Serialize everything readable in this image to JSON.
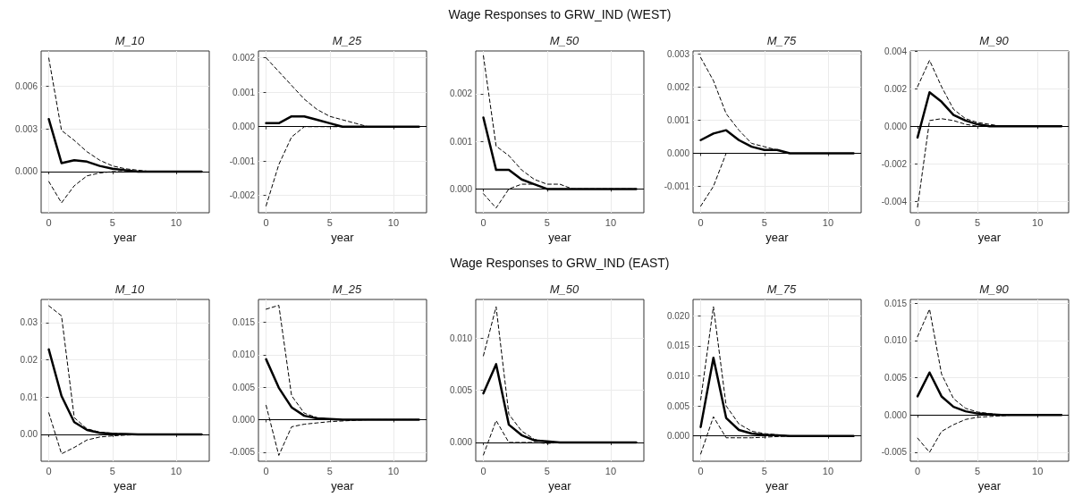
{
  "chart_data": [
    {
      "type": "line",
      "title": "M_10",
      "xlabel": "year",
      "x": [
        0,
        1,
        2,
        3,
        4,
        5,
        6,
        7,
        8,
        9,
        10,
        11,
        12
      ],
      "xlim": [
        -0.6,
        12.6
      ],
      "xticks": [
        0,
        5,
        10
      ],
      "ylim": [
        -0.0029,
        0.0085
      ],
      "yticks": [
        {
          "value": 0,
          "label": "0.000"
        },
        0.003,
        0.006
      ],
      "grid": true,
      "marker": "none",
      "ref_lines": [
        {
          "axis": "y",
          "value": 0,
          "color": "#000000"
        }
      ],
      "series": [
        {
          "color": "#000000",
          "line_style": "solid",
          "values": [
            0.0037,
            0.0006,
            0.0008,
            0.0007,
            0.0004,
            0.0002,
            0.0001,
            0,
            0,
            0,
            0,
            0,
            0
          ]
        },
        {
          "color": "#000000",
          "line_style": "dashed",
          "values": [
            0.008,
            0.0029,
            0.0022,
            0.0014,
            0.0008,
            0.0004,
            0.0002,
            0.0001,
            0,
            0,
            0,
            0,
            0
          ]
        },
        {
          "color": "#000000",
          "line_style": "dashed",
          "values": [
            -0.0007,
            -0.0022,
            -0.001,
            -0.0003,
            -0.0001,
            0,
            0,
            0,
            0,
            0,
            0,
            0,
            0
          ]
        }
      ]
    },
    {
      "type": "line",
      "title": "M_25",
      "xlabel": "year",
      "x": [
        0,
        1,
        2,
        3,
        4,
        5,
        6,
        7,
        8,
        9,
        10,
        11,
        12
      ],
      "xlim": [
        -0.6,
        12.6
      ],
      "xticks": [
        0,
        5,
        10
      ],
      "ylim": [
        -0.0025,
        0.0022
      ],
      "yticks": [
        -0.002,
        -0.001,
        {
          "value": 0,
          "label": "0.000"
        },
        0.001,
        0.002
      ],
      "grid": true,
      "marker": "none",
      "ref_lines": [
        {
          "axis": "y",
          "value": 0,
          "color": "#000000"
        }
      ],
      "series": [
        {
          "color": "#000000",
          "line_style": "solid",
          "values": [
            0.0001,
            0.0001,
            0.0003,
            0.0003,
            0.0002,
            0.0001,
            0,
            0,
            0,
            0,
            0,
            0,
            0
          ]
        },
        {
          "color": "#000000",
          "line_style": "dashed",
          "values": [
            0.002,
            0.0016,
            0.0012,
            0.0008,
            0.0005,
            0.0003,
            0.0002,
            0.0001,
            0,
            0,
            0,
            0,
            0
          ]
        },
        {
          "color": "#000000",
          "line_style": "dashed",
          "values": [
            -0.0023,
            -0.0011,
            -0.0003,
            0,
            0,
            0,
            0,
            0,
            0,
            0,
            0,
            0,
            0
          ]
        }
      ]
    },
    {
      "type": "line",
      "title": "M_50",
      "subtitle": "Wage Responses to GRW_IND (WEST)",
      "xlabel": "year",
      "x": [
        0,
        1,
        2,
        3,
        4,
        5,
        6,
        7,
        8,
        9,
        10,
        11,
        12
      ],
      "xlim": [
        -0.6,
        12.6
      ],
      "xticks": [
        0,
        5,
        10
      ],
      "ylim": [
        -0.0005,
        0.0029
      ],
      "yticks": [
        {
          "value": 0,
          "label": "0.000"
        },
        0.001,
        0.002
      ],
      "grid": true,
      "marker": "none",
      "ref_lines": [
        {
          "axis": "y",
          "value": 0,
          "color": "#000000"
        }
      ],
      "series": [
        {
          "color": "#000000",
          "line_style": "solid",
          "values": [
            0.0015,
            0.0004,
            0.0004,
            0.0002,
            0.0001,
            0,
            0,
            0,
            0,
            0,
            0,
            0,
            0
          ]
        },
        {
          "color": "#000000",
          "line_style": "dashed",
          "values": [
            0.0028,
            0.0009,
            0.0007,
            0.0004,
            0.0002,
            0.0001,
            0.0001,
            0,
            0,
            0,
            0,
            0,
            0
          ]
        },
        {
          "color": "#000000",
          "line_style": "dashed",
          "values": [
            -0.0001,
            -0.0004,
            0,
            0.0001,
            0.0001,
            0,
            0,
            0,
            0,
            0,
            0,
            0,
            0
          ]
        }
      ]
    },
    {
      "type": "line",
      "title": "M_75",
      "xlabel": "year",
      "x": [
        0,
        1,
        2,
        3,
        4,
        5,
        6,
        7,
        8,
        9,
        10,
        11,
        12
      ],
      "xlim": [
        -0.6,
        12.6
      ],
      "xticks": [
        0,
        5,
        10
      ],
      "ylim": [
        -0.0018,
        0.0031
      ],
      "yticks": [
        -0.001,
        {
          "value": 0,
          "label": "0.000"
        },
        0.001,
        0.002,
        0.003
      ],
      "grid": true,
      "marker": "none",
      "ref_lines": [
        {
          "axis": "y",
          "value": 0,
          "color": "#000000"
        }
      ],
      "series": [
        {
          "color": "#000000",
          "line_style": "solid",
          "values": [
            0.0004,
            0.0006,
            0.0007,
            0.0004,
            0.0002,
            0.0001,
            0.0001,
            0,
            0,
            0,
            0,
            0,
            0
          ]
        },
        {
          "color": "#000000",
          "line_style": "dashed",
          "values": [
            0.0029,
            0.0022,
            0.0012,
            0.0007,
            0.0003,
            0.0002,
            0.0001,
            0,
            0,
            0,
            0,
            0,
            0
          ]
        },
        {
          "color": "#000000",
          "line_style": "dashed",
          "values": [
            -0.0016,
            -0.001,
            0,
            0,
            0,
            0,
            0,
            0,
            0,
            0,
            0,
            0,
            0
          ]
        }
      ]
    },
    {
      "type": "line",
      "title": "M_90",
      "xlabel": "year",
      "x": [
        0,
        1,
        2,
        3,
        4,
        5,
        6,
        7,
        8,
        9,
        10,
        11,
        12
      ],
      "xlim": [
        -0.6,
        12.6
      ],
      "xticks": [
        0,
        5,
        10
      ],
      "ylim": [
        -0.0046,
        0.004
      ],
      "yticks": [
        -0.004,
        -0.002,
        {
          "value": 0,
          "label": "0.000"
        },
        0.002,
        0.004
      ],
      "grid": true,
      "marker": "none",
      "ref_lines": [
        {
          "axis": "y",
          "value": 0,
          "color": "#000000"
        }
      ],
      "series": [
        {
          "color": "#000000",
          "line_style": "solid",
          "values": [
            -0.0006,
            0.0018,
            0.0013,
            0.0006,
            0.0003,
            0.0001,
            0,
            0,
            0,
            0,
            0,
            0,
            0
          ]
        },
        {
          "color": "#000000",
          "line_style": "dashed",
          "values": [
            0.0021,
            0.0035,
            0.0021,
            0.0009,
            0.0004,
            0.0002,
            0.0001,
            0,
            0,
            0,
            0,
            0,
            0
          ]
        },
        {
          "color": "#000000",
          "line_style": "dashed",
          "values": [
            -0.0043,
            0.0003,
            0.0004,
            0.0003,
            0.0001,
            0,
            0,
            0,
            0,
            0,
            0,
            0,
            0
          ]
        }
      ]
    },
    {
      "type": "line",
      "title": "M_10",
      "xlabel": "year",
      "x": [
        0,
        1,
        2,
        3,
        4,
        5,
        6,
        7,
        8,
        9,
        10,
        11,
        12
      ],
      "xlim": [
        -0.6,
        12.6
      ],
      "xticks": [
        0,
        5,
        10
      ],
      "ylim": [
        -0.0072,
        0.0362
      ],
      "yticks": [
        {
          "value": 0,
          "label": "0.00"
        },
        0.01,
        0.02,
        0.03
      ],
      "grid": true,
      "marker": "none",
      "ref_lines": [
        {
          "axis": "y",
          "value": 0,
          "color": "#000000"
        }
      ],
      "series": [
        {
          "color": "#000000",
          "line_style": "solid",
          "values": [
            0.0228,
            0.0103,
            0.0033,
            0.0012,
            0.0004,
            0.0002,
            0.0001,
            0,
            0,
            0,
            0,
            0,
            0
          ]
        },
        {
          "color": "#000000",
          "line_style": "dashed",
          "values": [
            0.0345,
            0.0318,
            0.0045,
            0.0015,
            0.0006,
            0.0003,
            0.0001,
            0,
            0,
            0,
            0,
            0,
            0
          ]
        },
        {
          "color": "#000000",
          "line_style": "dashed",
          "values": [
            0.0058,
            -0.0052,
            -0.0035,
            -0.0015,
            -0.0007,
            -0.0004,
            -0.0002,
            -0.0001,
            0,
            0,
            0,
            0,
            0
          ]
        }
      ]
    },
    {
      "type": "line",
      "title": "M_25",
      "xlabel": "year",
      "x": [
        0,
        1,
        2,
        3,
        4,
        5,
        6,
        7,
        8,
        9,
        10,
        11,
        12
      ],
      "xlim": [
        -0.6,
        12.6
      ],
      "xticks": [
        0,
        5,
        10
      ],
      "ylim": [
        -0.0064,
        0.0185
      ],
      "yticks": [
        -0.005,
        {
          "value": 0,
          "label": "0.000"
        },
        0.005,
        {
          "value": 0.01,
          "label": "0.010"
        },
        0.015
      ],
      "grid": true,
      "marker": "none",
      "ref_lines": [
        {
          "axis": "y",
          "value": 0,
          "color": "#000000"
        }
      ],
      "series": [
        {
          "color": "#000000",
          "line_style": "solid",
          "values": [
            0.0093,
            0.0049,
            0.0019,
            0.0006,
            0.0002,
            0.0001,
            0,
            0,
            0,
            0,
            0,
            0,
            0
          ]
        },
        {
          "color": "#000000",
          "line_style": "dashed",
          "values": [
            0.017,
            0.0176,
            0.0037,
            0.001,
            0.0003,
            0.0001,
            0,
            0,
            0,
            0,
            0,
            0,
            0
          ]
        },
        {
          "color": "#000000",
          "line_style": "dashed",
          "values": [
            0.0022,
            -0.0055,
            -0.0011,
            -0.0007,
            -0.0005,
            -0.0003,
            -0.0002,
            -0.0001,
            0,
            0,
            0,
            0,
            0
          ]
        }
      ]
    },
    {
      "type": "line",
      "title": "M_50",
      "subtitle": "Wage Responses to GRW_IND (EAST)",
      "xlabel": "year",
      "x": [
        0,
        1,
        2,
        3,
        4,
        5,
        6,
        7,
        8,
        9,
        10,
        11,
        12
      ],
      "xlim": [
        -0.6,
        12.6
      ],
      "xticks": [
        0,
        5,
        10
      ],
      "ylim": [
        -0.0018,
        0.0137
      ],
      "yticks": [
        {
          "value": 0,
          "label": "0.000"
        },
        0.005,
        {
          "value": 0.01,
          "label": "0.010"
        }
      ],
      "grid": true,
      "marker": "none",
      "ref_lines": [
        {
          "axis": "y",
          "value": 0,
          "color": "#000000"
        }
      ],
      "series": [
        {
          "color": "#000000",
          "line_style": "solid",
          "values": [
            0.0047,
            0.0075,
            0.0017,
            0.0007,
            0.0002,
            0.0001,
            0,
            0,
            0,
            0,
            0,
            0,
            0
          ]
        },
        {
          "color": "#000000",
          "line_style": "dashed",
          "values": [
            0.0083,
            0.013,
            0.0027,
            0.0011,
            0.0003,
            0.0001,
            0,
            0,
            0,
            0,
            0,
            0,
            0
          ]
        },
        {
          "color": "#000000",
          "line_style": "dashed",
          "values": [
            -0.0012,
            0.0021,
            0,
            0,
            0,
            -0.0001,
            0,
            0,
            0,
            0,
            0,
            0,
            0
          ]
        }
      ]
    },
    {
      "type": "line",
      "title": "M_75",
      "xlabel": "year",
      "x": [
        0,
        1,
        2,
        3,
        4,
        5,
        6,
        7,
        8,
        9,
        10,
        11,
        12
      ],
      "xlim": [
        -0.6,
        12.6
      ],
      "xticks": [
        0,
        5,
        10
      ],
      "ylim": [
        -0.0042,
        0.0227
      ],
      "yticks": [
        {
          "value": 0,
          "label": "0.000"
        },
        0.005,
        {
          "value": 0.01,
          "label": "0.010"
        },
        0.015,
        {
          "value": 0.02,
          "label": "0.020"
        }
      ],
      "grid": true,
      "marker": "none",
      "ref_lines": [
        {
          "axis": "y",
          "value": 0,
          "color": "#000000"
        }
      ],
      "series": [
        {
          "color": "#000000",
          "line_style": "solid",
          "values": [
            0.0015,
            0.013,
            0.003,
            0.001,
            0.0004,
            0.0002,
            0.0001,
            0,
            0,
            0,
            0,
            0,
            0
          ]
        },
        {
          "color": "#000000",
          "line_style": "dashed",
          "values": [
            0.006,
            0.0215,
            0.005,
            0.002,
            0.0008,
            0.0004,
            0.0002,
            0,
            0,
            0,
            0,
            0,
            0
          ]
        },
        {
          "color": "#000000",
          "line_style": "dashed",
          "values": [
            -0.003,
            0.0032,
            -0.0003,
            -0.0003,
            -0.0003,
            -0.0002,
            -0.0001,
            0,
            0,
            0,
            0,
            0,
            0
          ]
        }
      ]
    },
    {
      "type": "line",
      "title": "M_90",
      "xlabel": "year",
      "x": [
        0,
        1,
        2,
        3,
        4,
        5,
        6,
        7,
        8,
        9,
        10,
        11,
        12
      ],
      "xlim": [
        -0.6,
        12.6
      ],
      "xticks": [
        0,
        5,
        10
      ],
      "ylim": [
        -0.0062,
        0.0155
      ],
      "yticks": [
        -0.005,
        {
          "value": 0,
          "label": "0.000"
        },
        0.005,
        {
          "value": 0.01,
          "label": "0.010"
        },
        0.015
      ],
      "grid": true,
      "marker": "none",
      "ref_lines": [
        {
          "axis": "y",
          "value": 0,
          "color": "#000000"
        }
      ],
      "series": [
        {
          "color": "#000000",
          "line_style": "solid",
          "values": [
            0.0025,
            0.0057,
            0.0025,
            0.0011,
            0.0005,
            0.0002,
            0.0001,
            0,
            0,
            0,
            0,
            0,
            0
          ]
        },
        {
          "color": "#000000",
          "line_style": "dashed",
          "values": [
            0.0105,
            0.0142,
            0.0055,
            0.0022,
            0.0009,
            0.0004,
            0.0002,
            0,
            0,
            0,
            0,
            0,
            0
          ]
        },
        {
          "color": "#000000",
          "line_style": "dashed",
          "values": [
            -0.0031,
            -0.005,
            -0.0022,
            -0.0013,
            -0.0006,
            -0.0003,
            -0.0002,
            -0.0001,
            0,
            0,
            0,
            0,
            0
          ]
        }
      ]
    }
  ]
}
